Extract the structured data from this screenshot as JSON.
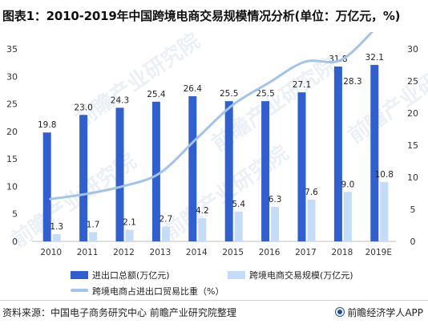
{
  "title": "图表1：2010-2019年中国跨境电商交易规模情况分析(单位：万亿元，%)",
  "source": "资料来源：中国电子商务研究中心 前瞻产业研究院整理",
  "brand": "前瞻经济学人APP",
  "watermark": "前瞻产业研究院",
  "colors": {
    "total_bar": "#2f5fd0",
    "cross_bar": "#c5dcf8",
    "share_line": "#a3c4ea"
  },
  "chart_data": {
    "type": "bar",
    "categories": [
      "2010",
      "2011",
      "2012",
      "2013",
      "2014",
      "2015",
      "2016",
      "2017",
      "2018",
      "2019E"
    ],
    "series": [
      {
        "name": "进出口总额(万亿元)",
        "type": "bar",
        "axis": "left",
        "values": [
          19.8,
          23.0,
          24.3,
          25.4,
          26.4,
          25.5,
          25.5,
          27.1,
          31.8,
          32.1
        ],
        "labels": [
          "19.8",
          "23.0",
          "24.3",
          "25.4",
          "26.4",
          "25.5",
          "25.5",
          "27.1",
          "31.8",
          "32.1"
        ]
      },
      {
        "name": "跨境电商交易规模(万亿元)",
        "type": "bar",
        "axis": "left",
        "values": [
          1.3,
          1.7,
          2.1,
          2.7,
          4.2,
          5.4,
          6.3,
          7.6,
          9.0,
          10.8
        ],
        "labels": [
          "1.3",
          "1.7",
          "2.1",
          "2.7",
          "4.2",
          "5.4",
          "6.3",
          "7.6",
          "9.0",
          "10.8"
        ]
      },
      {
        "name": "跨境电商占进出口贸易比重（%）",
        "type": "line",
        "axis": "right",
        "values": [
          6.6,
          7.4,
          8.6,
          10.6,
          15.9,
          21.2,
          24.7,
          28.0,
          28.3,
          33.6
        ],
        "labels": [
          "",
          "",
          "",
          "",
          "",
          "",
          "",
          "",
          "28.3",
          ""
        ]
      }
    ],
    "left_axis": {
      "min": 0,
      "max": 35,
      "ticks": [
        "0",
        "5",
        "10",
        "15",
        "20",
        "25",
        "30",
        "35"
      ]
    },
    "right_axis": {
      "min": 0,
      "max": 30,
      "ticks": [
        "0",
        "5",
        "10",
        "15",
        "20",
        "25",
        "30"
      ]
    },
    "grid": false,
    "legend": "bottom"
  }
}
